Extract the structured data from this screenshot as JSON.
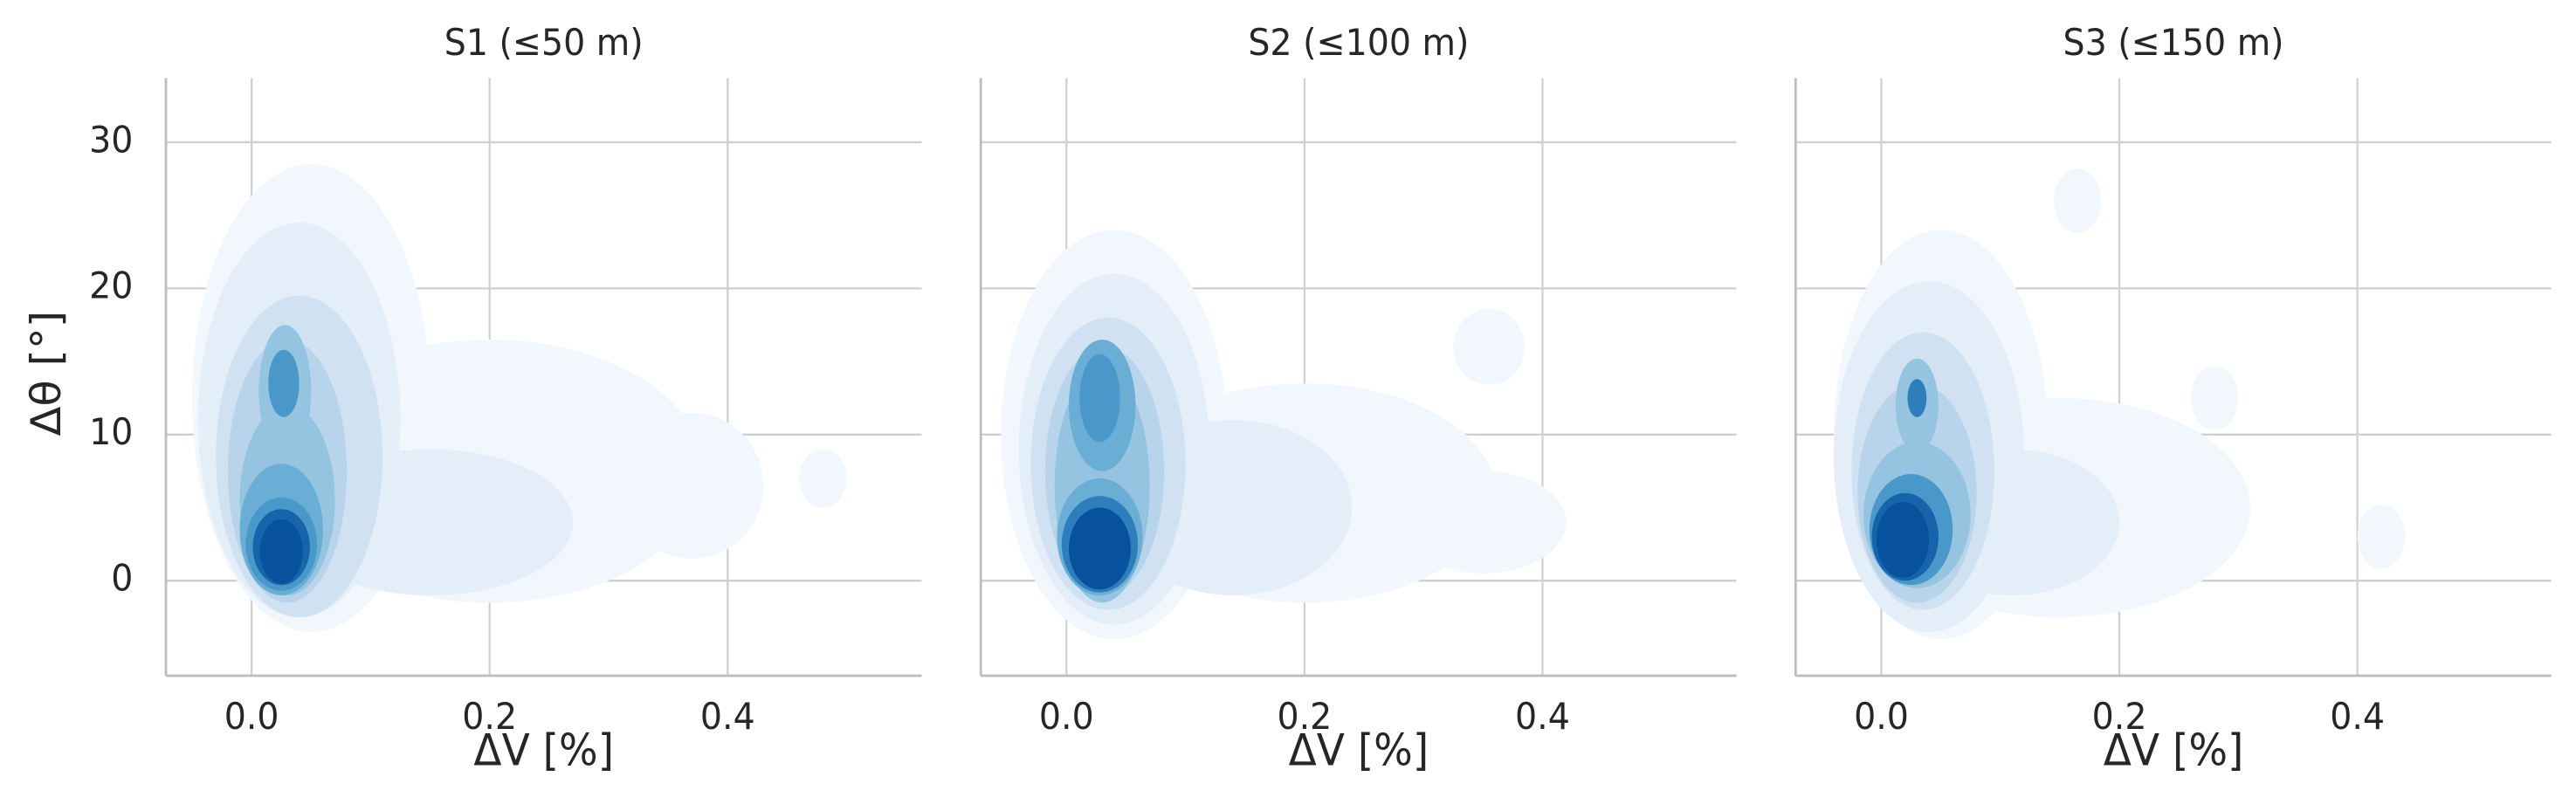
{
  "chart_data": [
    {
      "type": "kde",
      "title": "S1 (≤50 m)",
      "xlabel": "ΔV [%]",
      "ylabel": "Δθ [°]",
      "xlim": [
        -0.072,
        0.563
      ],
      "ylim": [
        -6.5,
        34.4
      ],
      "xticks": [
        {
          "value": 0,
          "label": "0.0"
        },
        {
          "value": 0.2,
          "label": "0.2"
        },
        {
          "value": 0.4,
          "label": "0.4"
        }
      ],
      "yticks": [
        0,
        10,
        20,
        30
      ],
      "grid": true,
      "colors": [
        "#f1f7fd",
        "#e3eef9",
        "#d0e1f2",
        "#b7d4ea",
        "#94c4df",
        "#6aaed6",
        "#4a98c9",
        "#2e7ebc",
        "#1764ab",
        "#08519c"
      ],
      "density_regions": [
        {
          "x": 0.05,
          "y": 12.5,
          "rx": 0.1,
          "ry": 16,
          "level": 0
        },
        {
          "x": 0.2,
          "y": 7.5,
          "rx": 0.18,
          "ry": 9,
          "level": 0
        },
        {
          "x": 0.37,
          "y": 6.5,
          "rx": 0.06,
          "ry": 5,
          "level": 0
        },
        {
          "x": 0.48,
          "y": 7,
          "rx": 0.02,
          "ry": 2,
          "level": 0
        },
        {
          "x": 0.04,
          "y": 11,
          "rx": 0.085,
          "ry": 13.5,
          "level": 1
        },
        {
          "x": 0.15,
          "y": 4,
          "rx": 0.12,
          "ry": 5,
          "level": 1
        },
        {
          "x": 0.04,
          "y": 8.5,
          "rx": 0.07,
          "ry": 11,
          "level": 2
        },
        {
          "x": 0.03,
          "y": 7.5,
          "rx": 0.05,
          "ry": 9,
          "level": 3
        },
        {
          "x": 0.03,
          "y": 5.5,
          "rx": 0.04,
          "ry": 6.5,
          "level": 4
        },
        {
          "x": 0.028,
          "y": 13,
          "rx": 0.022,
          "ry": 4.5,
          "level": 4
        },
        {
          "x": 0.025,
          "y": 3.5,
          "rx": 0.035,
          "ry": 4.5,
          "level": 5
        },
        {
          "x": 0.027,
          "y": 13.5,
          "rx": 0.013,
          "ry": 2.3,
          "level": 6
        },
        {
          "x": 0.025,
          "y": 2.5,
          "rx": 0.03,
          "ry": 3.2,
          "level": 6
        },
        {
          "x": 0.025,
          "y": 2.3,
          "rx": 0.024,
          "ry": 2.6,
          "level": 8
        },
        {
          "x": 0.025,
          "y": 2,
          "rx": 0.018,
          "ry": 2.2,
          "level": 9
        }
      ]
    },
    {
      "type": "kde",
      "title": "S2 (≤100 m)",
      "xlabel": "ΔV [%]",
      "xlim": [
        -0.072,
        0.563
      ],
      "ylim": [
        -6.5,
        34.4
      ],
      "xticks": [
        {
          "value": 0,
          "label": "0.0"
        },
        {
          "value": 0.2,
          "label": "0.2"
        },
        {
          "value": 0.4,
          "label": "0.4"
        }
      ],
      "yticks": [
        0,
        10,
        20,
        30
      ],
      "grid": true,
      "colors": [
        "#f1f7fd",
        "#e3eef9",
        "#d0e1f2",
        "#b7d4ea",
        "#94c4df",
        "#6aaed6",
        "#4a98c9",
        "#2e7ebc",
        "#1764ab",
        "#08519c"
      ],
      "density_regions": [
        {
          "x": 0.04,
          "y": 10,
          "rx": 0.095,
          "ry": 14,
          "level": 0
        },
        {
          "x": 0.2,
          "y": 6,
          "rx": 0.16,
          "ry": 7.5,
          "level": 0
        },
        {
          "x": 0.35,
          "y": 4,
          "rx": 0.07,
          "ry": 3.5,
          "level": 0
        },
        {
          "x": 0.355,
          "y": 16,
          "rx": 0.03,
          "ry": 2.6,
          "level": 0
        },
        {
          "x": 0.04,
          "y": 9,
          "rx": 0.08,
          "ry": 12,
          "level": 1
        },
        {
          "x": 0.14,
          "y": 5,
          "rx": 0.1,
          "ry": 6,
          "level": 1
        },
        {
          "x": 0.035,
          "y": 8,
          "rx": 0.065,
          "ry": 10,
          "level": 2
        },
        {
          "x": 0.032,
          "y": 7.5,
          "rx": 0.05,
          "ry": 8.5,
          "level": 3
        },
        {
          "x": 0.03,
          "y": 6.5,
          "rx": 0.04,
          "ry": 8,
          "level": 4
        },
        {
          "x": 0.03,
          "y": 12,
          "rx": 0.028,
          "ry": 4.5,
          "level": 5
        },
        {
          "x": 0.028,
          "y": 3,
          "rx": 0.036,
          "ry": 4,
          "level": 5
        },
        {
          "x": 0.028,
          "y": 12.5,
          "rx": 0.017,
          "ry": 3,
          "level": 6
        },
        {
          "x": 0.028,
          "y": 2.5,
          "rx": 0.032,
          "ry": 3.3,
          "level": 7
        },
        {
          "x": 0.028,
          "y": 2.2,
          "rx": 0.026,
          "ry": 2.8,
          "level": 9
        }
      ]
    },
    {
      "type": "kde",
      "title": "S3 (≤150 m)",
      "xlabel": "ΔV [%]",
      "xlim": [
        -0.072,
        0.563
      ],
      "ylim": [
        -6.5,
        34.4
      ],
      "xticks": [
        {
          "value": 0,
          "label": "0.0"
        },
        {
          "value": 0.2,
          "label": "0.2"
        },
        {
          "value": 0.4,
          "label": "0.4"
        }
      ],
      "yticks": [
        0,
        10,
        20,
        30
      ],
      "grid": true,
      "colors": [
        "#f1f7fd",
        "#e3eef9",
        "#d0e1f2",
        "#b7d4ea",
        "#94c4df",
        "#6aaed6",
        "#4a98c9",
        "#2e7ebc",
        "#1764ab",
        "#08519c"
      ],
      "density_regions": [
        {
          "x": 0.05,
          "y": 10,
          "rx": 0.09,
          "ry": 14,
          "level": 0
        },
        {
          "x": 0.15,
          "y": 5,
          "rx": 0.16,
          "ry": 7.5,
          "level": 0
        },
        {
          "x": 0.165,
          "y": 26,
          "rx": 0.02,
          "ry": 2.2,
          "level": 0
        },
        {
          "x": 0.28,
          "y": 12.5,
          "rx": 0.02,
          "ry": 2.2,
          "level": 0
        },
        {
          "x": 0.42,
          "y": 3,
          "rx": 0.02,
          "ry": 2.2,
          "level": 0
        },
        {
          "x": 0.04,
          "y": 8.5,
          "rx": 0.08,
          "ry": 12,
          "level": 1
        },
        {
          "x": 0.11,
          "y": 4,
          "rx": 0.09,
          "ry": 5,
          "level": 1
        },
        {
          "x": 0.035,
          "y": 7.5,
          "rx": 0.06,
          "ry": 9.5,
          "level": 2
        },
        {
          "x": 0.03,
          "y": 6,
          "rx": 0.05,
          "ry": 7.5,
          "level": 3
        },
        {
          "x": 0.03,
          "y": 4.5,
          "rx": 0.045,
          "ry": 5,
          "level": 4
        },
        {
          "x": 0.03,
          "y": 12,
          "rx": 0.018,
          "ry": 3.2,
          "level": 4
        },
        {
          "x": 0.025,
          "y": 3.5,
          "rx": 0.035,
          "ry": 3.8,
          "level": 6
        },
        {
          "x": 0.03,
          "y": 12.5,
          "rx": 0.008,
          "ry": 1.3,
          "level": 7
        },
        {
          "x": 0.02,
          "y": 3,
          "rx": 0.028,
          "ry": 3,
          "level": 8
        },
        {
          "x": 0.018,
          "y": 2.8,
          "rx": 0.022,
          "ry": 2.6,
          "level": 9
        }
      ]
    }
  ]
}
